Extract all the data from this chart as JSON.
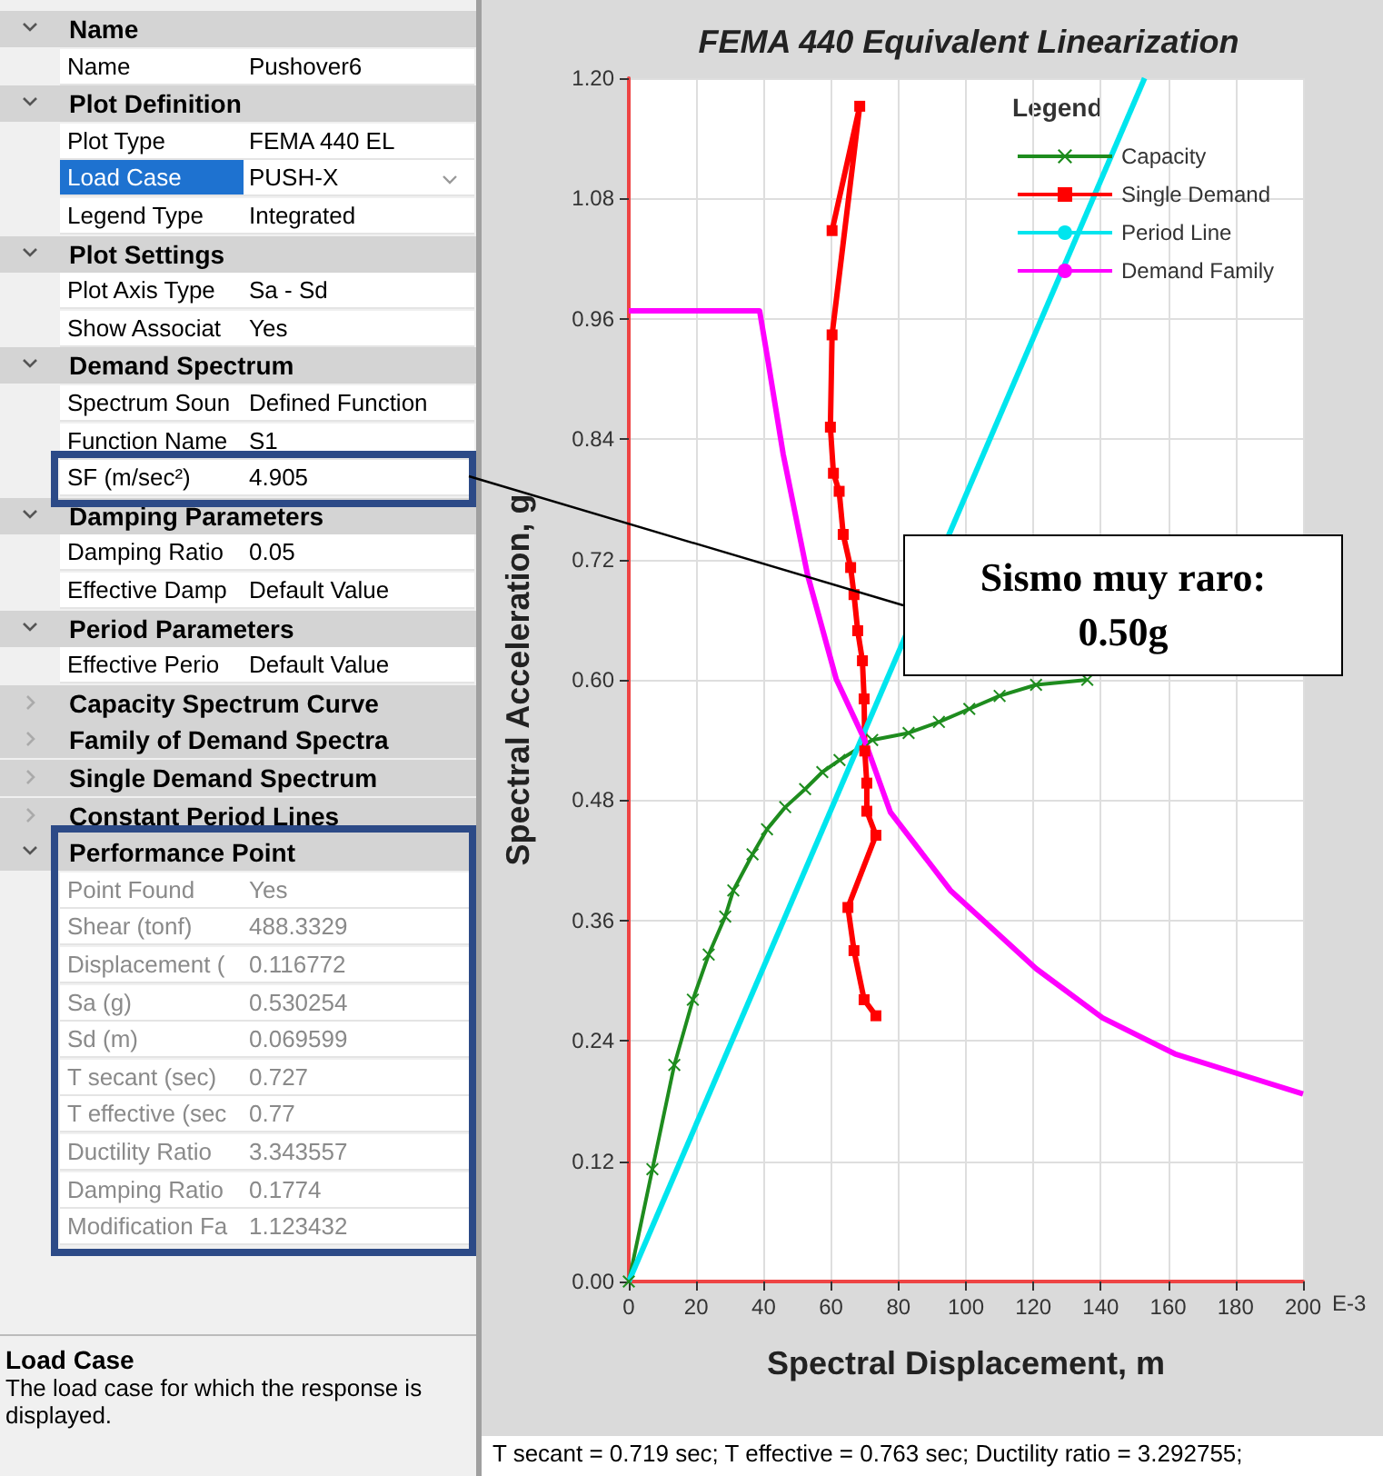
{
  "chart_data": {
    "type": "line",
    "title": "FEMA 440 Equivalent Linearization",
    "xlabel": "Spectral Displacement, m",
    "ylabel": "Spectral Acceleration, g",
    "legend_title": "Legend",
    "legend": "top right",
    "grid": true,
    "xlim": [
      0,
      200
    ],
    "xticks": [
      0,
      20,
      40,
      60,
      80,
      100,
      120,
      140,
      160,
      180,
      200
    ],
    "ylim": [
      0,
      1.2
    ],
    "yticks": [
      {
        "value": 0,
        "label": "0.00"
      },
      {
        "value": 0.12,
        "label": "0.12"
      },
      {
        "value": 0.24,
        "label": "0.24"
      },
      {
        "value": 0.36,
        "label": "0.36"
      },
      {
        "value": 0.48,
        "label": "0.48"
      },
      {
        "value": 0.6,
        "label": "0.60"
      },
      {
        "value": 0.72,
        "label": "0.72"
      },
      {
        "value": 0.84,
        "label": "0.84"
      },
      {
        "value": 0.96,
        "label": "0.96"
      },
      {
        "value": 1.08,
        "label": "1.08"
      },
      {
        "value": 1.2,
        "label": "1.20"
      }
    ],
    "series": [
      {
        "name": "Capacity",
        "color": "#1e8c1e",
        "marker": "cross",
        "x": [
          0,
          7,
          13.5,
          19,
          23.7,
          28.6,
          31,
          36.7,
          41,
          46.4,
          52.3,
          57.4,
          62.5,
          72.2,
          83,
          92,
          101,
          110,
          120.8,
          136
        ],
        "values": [
          0,
          0.112,
          0.216,
          0.281,
          0.326,
          0.364,
          0.39,
          0.426,
          0.451,
          0.473,
          0.491,
          0.508,
          0.52,
          0.54,
          0.547,
          0.558,
          0.571,
          0.584,
          0.595,
          0.6
        ]
      },
      {
        "name": "Single Demand",
        "color": "#ff0000",
        "marker": "square",
        "x": [
          60.3,
          68.5,
          60.3,
          59.8,
          60.7,
          62.4,
          63.6,
          65.8,
          66.8,
          67.9,
          69.3,
          69.8,
          70,
          70.6,
          70.6,
          73.3,
          65,
          66.8,
          69.8,
          73.3
        ],
        "values": [
          1.048,
          1.172,
          0.944,
          0.852,
          0.806,
          0.788,
          0.745,
          0.712,
          0.685,
          0.649,
          0.619,
          0.581,
          0.529,
          0.497,
          0.469,
          0.445,
          0.373,
          0.33,
          0.281,
          0.265
        ]
      },
      {
        "name": "Period Line",
        "color": "#00e5ee",
        "marker": "none",
        "x": [
          0,
          153
        ],
        "values": [
          0,
          1.2
        ]
      },
      {
        "name": "Demand Family",
        "color": "#ff00ff",
        "marker": "none",
        "x": [
          0,
          38.8,
          41.2,
          45.8,
          53,
          61.5,
          69.8,
          77.6,
          95.4,
          120.8,
          140.5,
          162,
          180,
          200
        ],
        "values": [
          0.968,
          0.968,
          0.92,
          0.825,
          0.705,
          0.601,
          0.541,
          0.468,
          0.39,
          0.312,
          0.263,
          0.227,
          0.208,
          0.187
        ]
      }
    ],
    "annotations": [
      "Name",
      "Name",
      "Pushover6",
      "Plot Definition",
      "Plot Type",
      "FEMA 440 EL",
      "Load Case",
      "PUSH-X",
      "Legend Type",
      "Integrated",
      "Plot Settings",
      "Plot Axis Type",
      "Sa - Sd",
      "Show Associat",
      "Yes",
      "Demand Spectrum",
      "Spectrum Soun",
      "Defined Function",
      "Function Name",
      "S1",
      "SF (m/sec²)",
      "4.905",
      "Damping Parameters",
      "Damping Ratio",
      "0.05",
      "Effective Damp",
      "Default Value",
      "Period Parameters",
      "Effective Perio",
      "Default Value",
      "Capacity Spectrum Curve",
      "Family of Demand Spectra",
      "Single Demand Spectrum",
      "Constant Period Lines",
      "Performance Point",
      "Point Found",
      "Yes",
      "Shear (tonf)",
      "488.3329",
      "Displacement (",
      "0.116772",
      "Sa (g)",
      "0.530254",
      "Sd (m)",
      "0.069599",
      "T secant (sec)",
      "0.727",
      "T effective (sec",
      "0.77",
      "Ductility Ratio",
      "3.343557",
      "Damping Ratio",
      "0.1774",
      "Modification Fa",
      "1.123432",
      "Load Case",
      "The load case for which the response is displayed.",
      "T secant = 0.719 sec;  T effective = 0.763 sec;  Ductility ratio = 3.292755;",
      "Sismo muy raro: 0.50g",
      "E-3"
    ]
  }
}
